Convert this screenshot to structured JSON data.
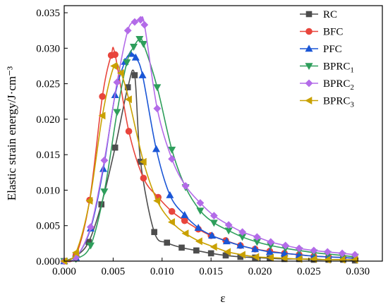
{
  "chart_data": {
    "type": "line",
    "xlabel": "ε",
    "ylabel": "Elastic strain energy/J·cm⁻³",
    "xlim": [
      0,
      0.0325
    ],
    "ylim": [
      0,
      0.036
    ],
    "xticks": [
      "0.000",
      "0.005",
      "0.010",
      "0.015",
      "0.020",
      "0.025",
      "0.030"
    ],
    "yticks": [
      "0.000",
      "0.005",
      "0.010",
      "0.015",
      "0.020",
      "0.025",
      "0.030",
      "0.035"
    ],
    "legend_position": "top-right",
    "series": [
      {
        "name": "RC",
        "label_main": "RC",
        "label_sub": "",
        "color": "#4d4d4d",
        "marker": "square",
        "x": [
          0.0,
          0.0012,
          0.0025,
          0.0038,
          0.0052,
          0.0065,
          0.0072,
          0.0078,
          0.0092,
          0.0105,
          0.012,
          0.0135,
          0.015,
          0.0165,
          0.018,
          0.0195,
          0.021,
          0.0225,
          0.024,
          0.0255,
          0.027,
          0.0285,
          0.0297
        ],
        "y": [
          0.0,
          0.0007,
          0.0027,
          0.008,
          0.016,
          0.0245,
          0.0262,
          0.014,
          0.0041,
          0.0026,
          0.0019,
          0.0015,
          0.0011,
          0.0008,
          0.0006,
          0.0005,
          0.0004,
          0.0003,
          0.0003,
          0.0002,
          0.0002,
          0.0002,
          0.0001
        ]
      },
      {
        "name": "BFC",
        "label_main": "BFC",
        "label_sub": "",
        "color": "#e8453c",
        "marker": "circle",
        "x": [
          0.0,
          0.0012,
          0.0026,
          0.0039,
          0.0048,
          0.0052,
          0.0066,
          0.0081,
          0.0096,
          0.011,
          0.0123,
          0.0137,
          0.015,
          0.0165,
          0.018,
          0.0195,
          0.021,
          0.0225,
          0.024,
          0.0255,
          0.027,
          0.0285,
          0.0297
        ],
        "y": [
          0.0,
          0.0008,
          0.0086,
          0.0232,
          0.029,
          0.0291,
          0.0183,
          0.0117,
          0.009,
          0.007,
          0.0057,
          0.0045,
          0.0036,
          0.0029,
          0.0022,
          0.0017,
          0.0014,
          0.0011,
          0.0009,
          0.0007,
          0.0006,
          0.0005,
          0.0004
        ]
      },
      {
        "name": "PFC",
        "label_main": "PFC",
        "label_sub": "",
        "color": "#1a56d6",
        "marker": "triangle-up",
        "x": [
          0.0,
          0.0012,
          0.0027,
          0.004,
          0.0052,
          0.0062,
          0.0068,
          0.0073,
          0.008,
          0.0094,
          0.0108,
          0.0123,
          0.0137,
          0.0151,
          0.0166,
          0.018,
          0.0195,
          0.021,
          0.0225,
          0.024,
          0.0255,
          0.027,
          0.0285,
          0.0297
        ],
        "y": [
          0.0,
          0.0005,
          0.0046,
          0.013,
          0.0234,
          0.0281,
          0.0292,
          0.0287,
          0.0262,
          0.0158,
          0.0093,
          0.0065,
          0.0047,
          0.0036,
          0.0028,
          0.0022,
          0.0017,
          0.0013,
          0.0011,
          0.0009,
          0.0007,
          0.0006,
          0.0005,
          0.0004
        ]
      },
      {
        "name": "BPRC1",
        "label_main": "BPRC",
        "label_sub": "1",
        "color": "#2e9e5b",
        "marker": "triangle-down",
        "x": [
          0.0,
          0.0012,
          0.0027,
          0.0041,
          0.0054,
          0.0064,
          0.0071,
          0.0077,
          0.0081,
          0.0095,
          0.011,
          0.0124,
          0.0139,
          0.0153,
          0.0168,
          0.0182,
          0.0197,
          0.0211,
          0.0226,
          0.024,
          0.0255,
          0.0269,
          0.0284,
          0.0297
        ],
        "y": [
          0.0,
          0.0003,
          0.0022,
          0.0098,
          0.021,
          0.028,
          0.0302,
          0.0313,
          0.0306,
          0.0245,
          0.0157,
          0.0104,
          0.0071,
          0.0054,
          0.0043,
          0.0034,
          0.0027,
          0.0022,
          0.0018,
          0.0015,
          0.0012,
          0.001,
          0.0008,
          0.0006
        ]
      },
      {
        "name": "BPRC2",
        "label_main": "BPRC",
        "label_sub": "2",
        "color": "#b36be8",
        "marker": "diamond",
        "x": [
          0.0,
          0.0012,
          0.0027,
          0.0041,
          0.0054,
          0.0065,
          0.0072,
          0.0078,
          0.0082,
          0.0095,
          0.011,
          0.0124,
          0.0139,
          0.0153,
          0.0168,
          0.0182,
          0.0197,
          0.0211,
          0.0226,
          0.024,
          0.0255,
          0.0269,
          0.0284,
          0.0297
        ],
        "y": [
          0.0,
          0.0005,
          0.0048,
          0.0142,
          0.0252,
          0.0325,
          0.0337,
          0.034,
          0.0333,
          0.0215,
          0.0144,
          0.0106,
          0.0082,
          0.0064,
          0.0051,
          0.0041,
          0.0034,
          0.0027,
          0.0022,
          0.0018,
          0.0015,
          0.0013,
          0.0011,
          0.0009
        ]
      },
      {
        "name": "BPRC3",
        "label_main": "BPRC",
        "label_sub": "3",
        "color": "#c9a100",
        "marker": "triangle-left",
        "x": [
          0.0,
          0.0012,
          0.0026,
          0.0039,
          0.0051,
          0.0058,
          0.0066,
          0.0081,
          0.0095,
          0.011,
          0.0124,
          0.0138,
          0.0153,
          0.0167,
          0.0182,
          0.0196,
          0.0211,
          0.0225,
          0.024,
          0.0255,
          0.0269,
          0.0284,
          0.0297
        ],
        "y": [
          0.0,
          0.0012,
          0.0085,
          0.0205,
          0.0275,
          0.0265,
          0.0228,
          0.014,
          0.0085,
          0.0055,
          0.0039,
          0.0028,
          0.002,
          0.0013,
          0.0009,
          0.0006,
          0.0005,
          0.0004,
          0.0003,
          0.0003,
          0.0002,
          0.0002,
          0.0002
        ]
      }
    ]
  }
}
